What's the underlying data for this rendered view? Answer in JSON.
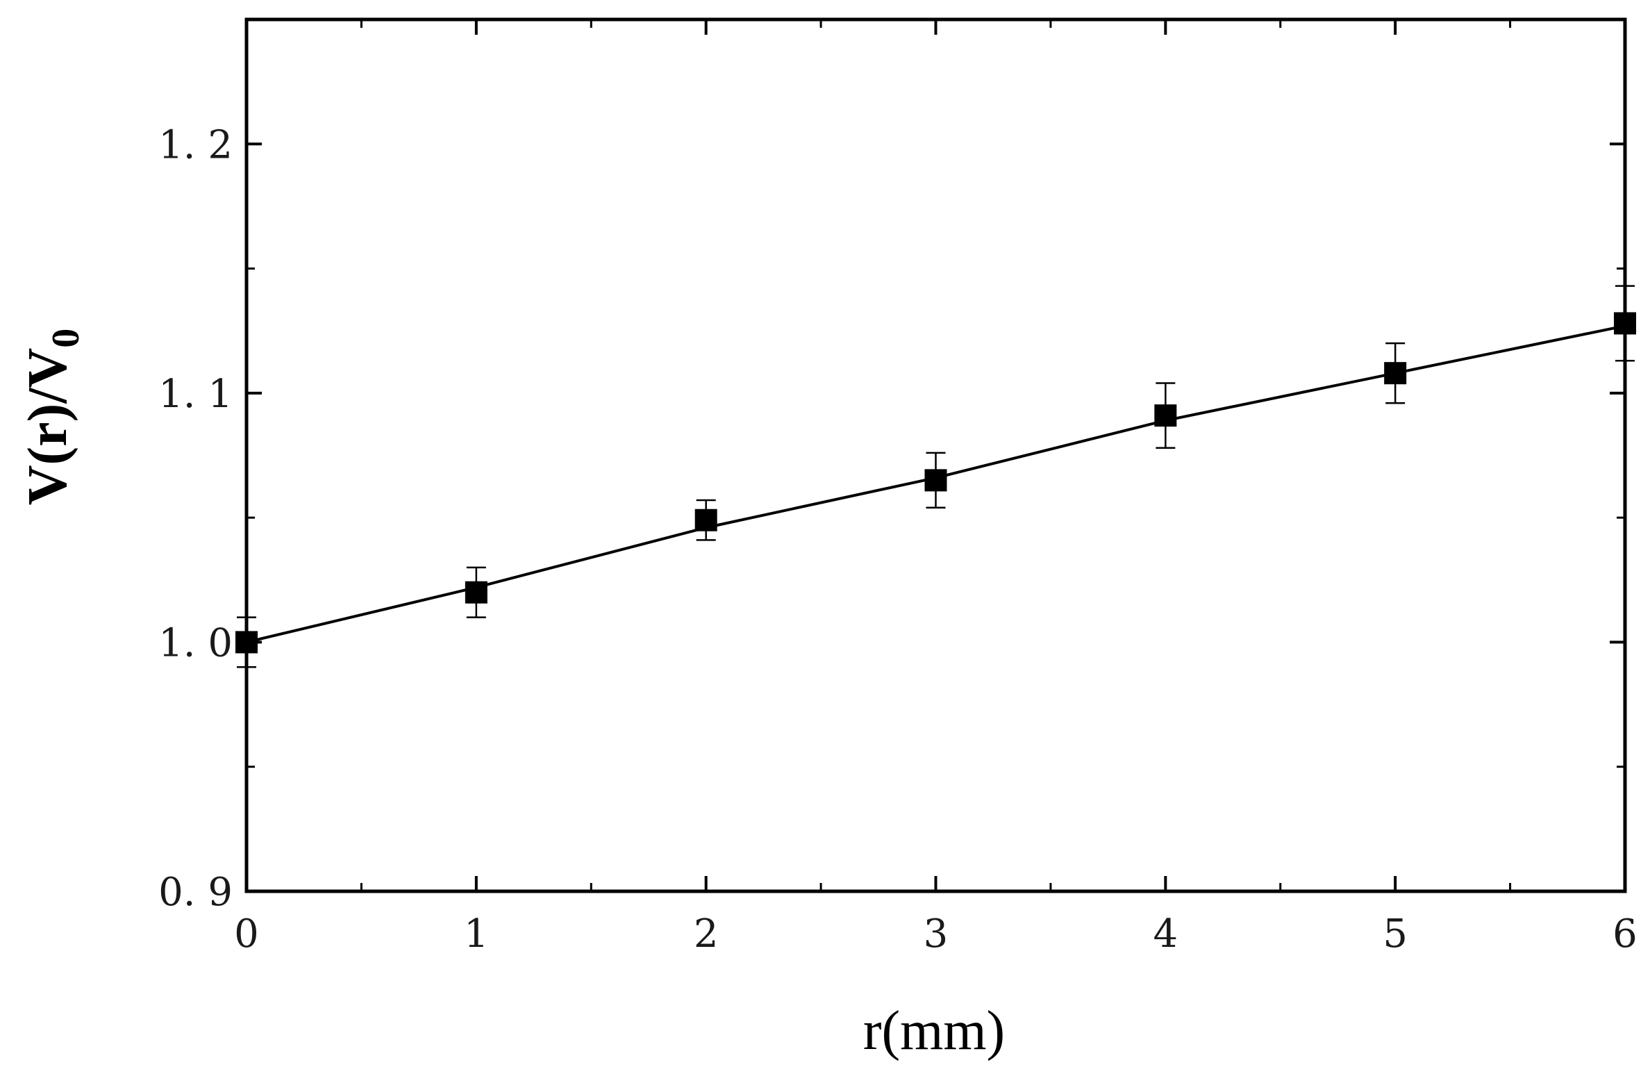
{
  "chart_data": {
    "type": "scatter",
    "title": "",
    "xlabel": "r(mm)",
    "ylabel_main": "V(r)/V",
    "ylabel_sub": "0",
    "xlim": [
      0,
      6
    ],
    "ylim": [
      0.9,
      1.25
    ],
    "xticks": [
      0,
      1,
      2,
      3,
      4,
      5,
      6
    ],
    "xtick_labels": [
      "0",
      "1",
      "2",
      "3",
      "4",
      "5",
      "6"
    ],
    "yticks": [
      0.9,
      1.0,
      1.1,
      1.2
    ],
    "ytick_labels": [
      "0. 9",
      "1. 0",
      "1. 1",
      "1. 2"
    ],
    "grid": false,
    "legend": "none",
    "series": [
      {
        "x": [
          0,
          1,
          2,
          3,
          4,
          5,
          6
        ],
        "y": [
          1.0,
          1.02,
          1.049,
          1.065,
          1.091,
          1.108,
          1.128
        ],
        "yerr": [
          0.01,
          0.01,
          0.008,
          0.011,
          0.013,
          0.012,
          0.015
        ],
        "marker": "square",
        "color": "#000000"
      }
    ],
    "fit_line": {
      "x": [
        0,
        1,
        2,
        3,
        4,
        5,
        6
      ],
      "y": [
        1.0,
        1.022,
        1.046,
        1.066,
        1.089,
        1.108,
        1.127
      ]
    }
  }
}
